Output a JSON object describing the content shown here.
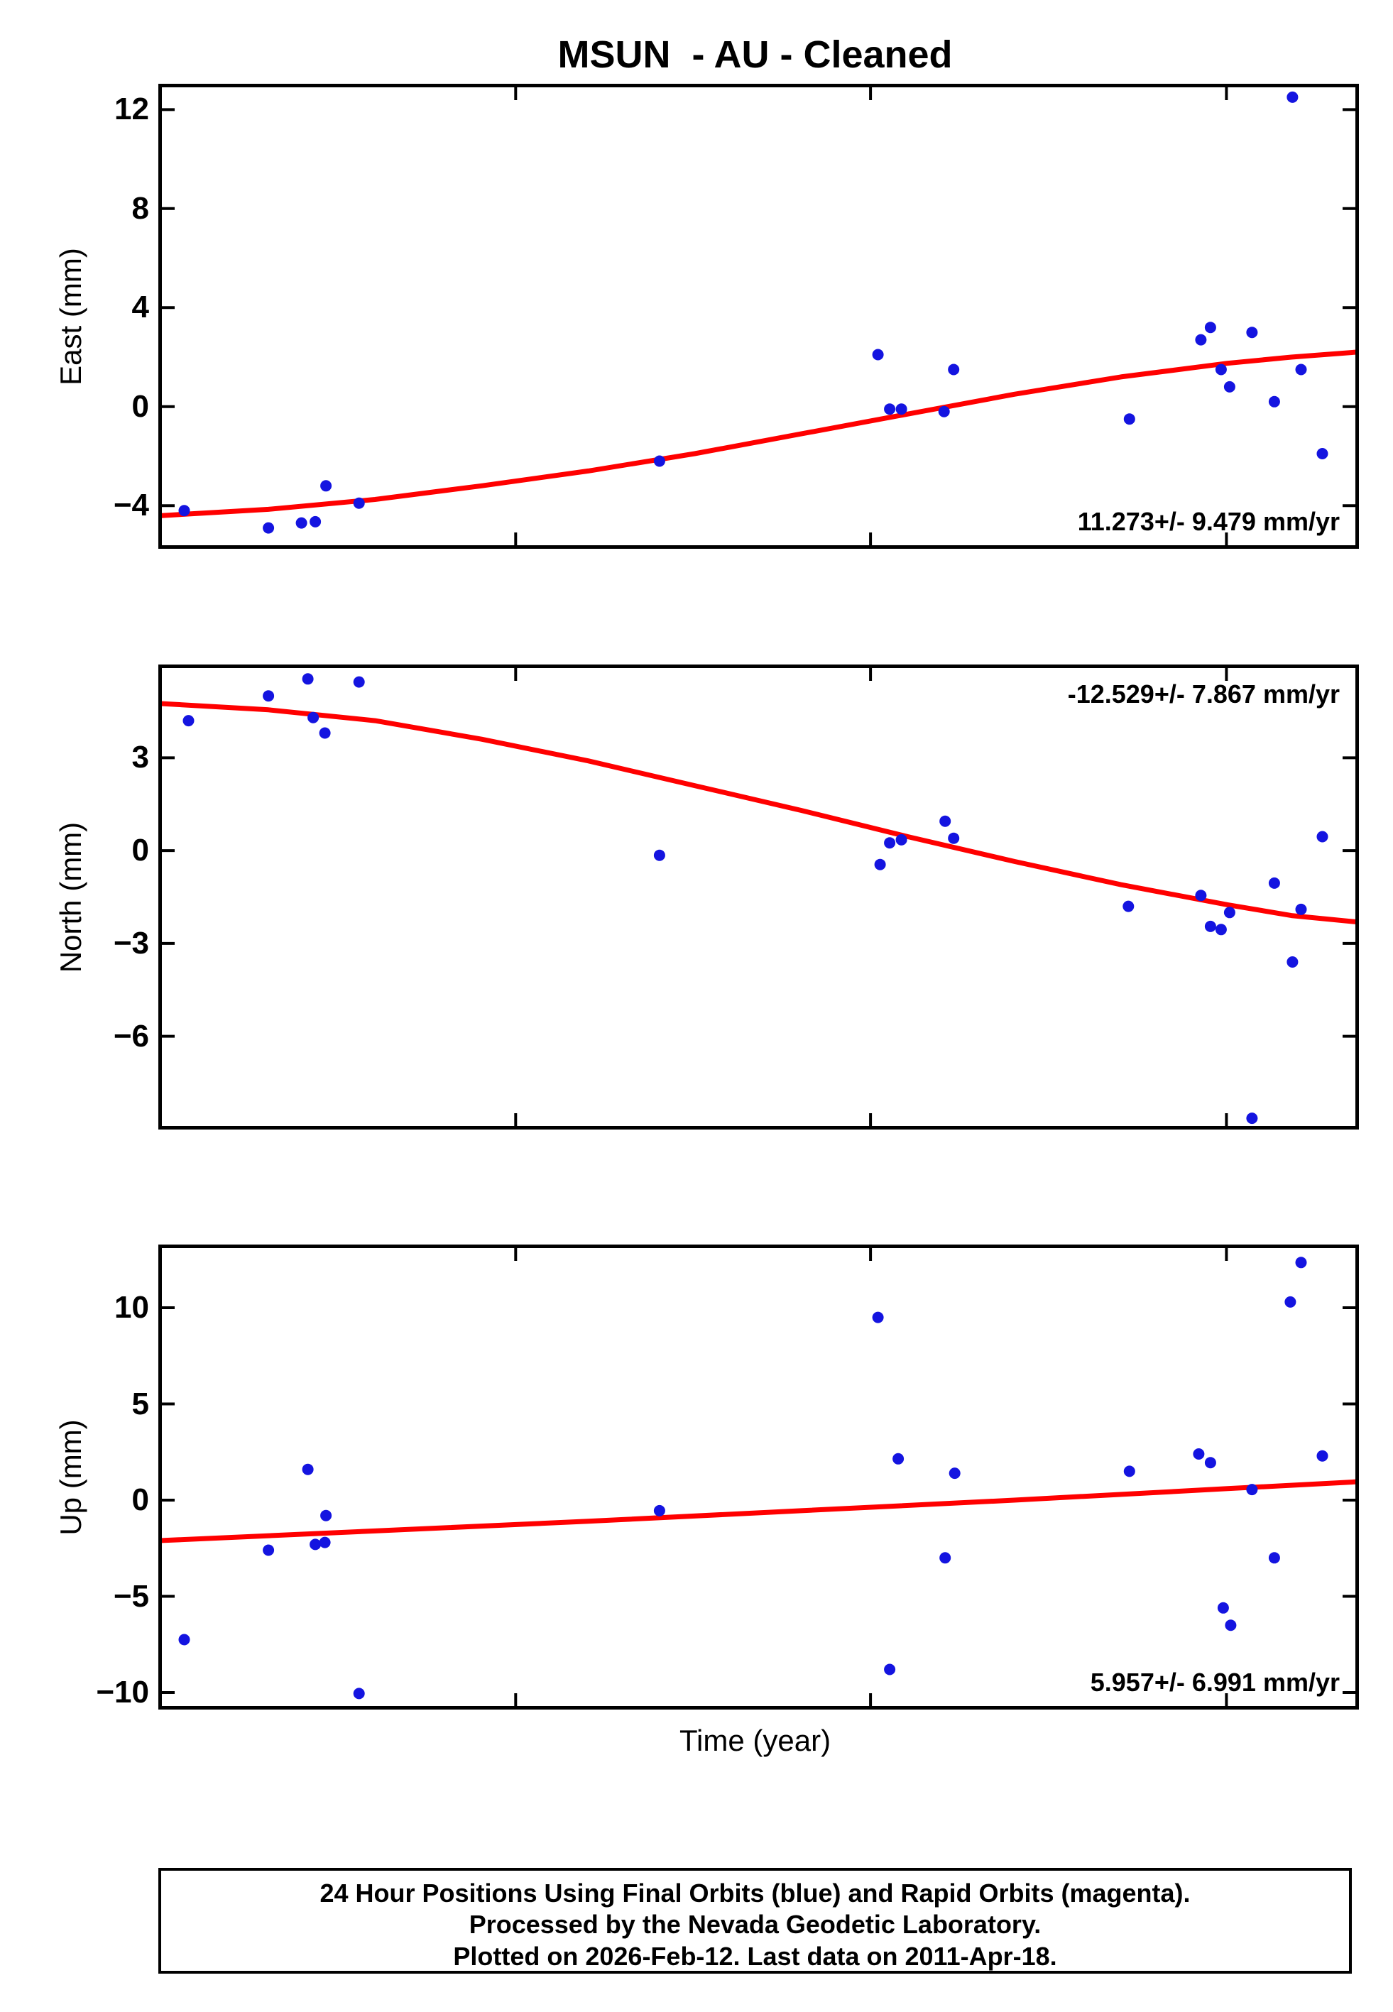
{
  "title": "MSUN  - AU - Cleaned",
  "xlabel": "Time (year)",
  "footer": {
    "lines": [
      "24 Hour Positions Using Final Orbits (blue) and Rapid Orbits (magenta).",
      "Processed by the Nevada Geodetic Laboratory.",
      "Plotted on 2026-Feb-12. Last data on 2011-Apr-18."
    ]
  },
  "colors": {
    "points": "#1414e0",
    "trend": "#ff0000",
    "frame": "#000000"
  },
  "chart_data": [
    {
      "type": "scatter",
      "name": "east",
      "ylabel": "East (mm)",
      "annotation": "11.273+/- 9.479 mm/yr",
      "annotation_position": "bottom-right",
      "xlim": [
        2000.4,
        2011.6
      ],
      "ylim": [
        -5.6,
        12.9
      ],
      "y_ticks": [
        12,
        8,
        4,
        0,
        -4
      ],
      "x_ticks": [
        2003.72,
        2007.05,
        2010.39
      ],
      "points": [
        [
          2000.61,
          -4.2
        ],
        [
          2001.4,
          -4.9
        ],
        [
          2001.71,
          -4.7
        ],
        [
          2001.84,
          -4.65
        ],
        [
          2001.94,
          -3.2
        ],
        [
          2002.25,
          -3.9
        ],
        [
          2005.07,
          -2.2
        ],
        [
          2007.12,
          2.1
        ],
        [
          2007.23,
          -0.1
        ],
        [
          2007.34,
          -0.1
        ],
        [
          2007.74,
          -0.2
        ],
        [
          2007.83,
          1.5
        ],
        [
          2009.48,
          -0.5
        ],
        [
          2010.15,
          2.7
        ],
        [
          2010.24,
          3.2
        ],
        [
          2010.34,
          1.5
        ],
        [
          2010.42,
          0.8
        ],
        [
          2010.63,
          3.0
        ],
        [
          2010.84,
          0.2
        ],
        [
          2011.01,
          12.5
        ],
        [
          2011.09,
          1.5
        ],
        [
          2011.29,
          -1.9
        ]
      ],
      "trend": [
        [
          2000.4,
          -4.4
        ],
        [
          2001.4,
          -4.15
        ],
        [
          2002.4,
          -3.75
        ],
        [
          2003.4,
          -3.2
        ],
        [
          2004.4,
          -2.6
        ],
        [
          2005.4,
          -1.9
        ],
        [
          2006.4,
          -1.1
        ],
        [
          2007.4,
          -0.3
        ],
        [
          2008.4,
          0.5
        ],
        [
          2009.4,
          1.2
        ],
        [
          2010.4,
          1.75
        ],
        [
          2011.0,
          2.0
        ],
        [
          2011.6,
          2.2
        ]
      ]
    },
    {
      "type": "scatter",
      "name": "north",
      "ylabel": "North (mm)",
      "annotation": "-12.529+/- 7.867 mm/yr",
      "annotation_position": "top-right",
      "xlim": [
        2000.4,
        2011.6
      ],
      "ylim": [
        -8.9,
        5.9
      ],
      "y_ticks": [
        3,
        0,
        -3,
        -6
      ],
      "x_ticks": [
        2003.72,
        2007.05,
        2010.39
      ],
      "points": [
        [
          2000.65,
          4.2
        ],
        [
          2001.4,
          5.0
        ],
        [
          2001.77,
          5.55
        ],
        [
          2001.82,
          4.3
        ],
        [
          2001.93,
          3.8
        ],
        [
          2002.25,
          5.45
        ],
        [
          2005.07,
          -0.15
        ],
        [
          2007.14,
          -0.45
        ],
        [
          2007.23,
          0.25
        ],
        [
          2007.34,
          0.35
        ],
        [
          2007.75,
          0.95
        ],
        [
          2007.83,
          0.4
        ],
        [
          2009.47,
          -1.8
        ],
        [
          2010.15,
          -1.45
        ],
        [
          2010.24,
          -2.45
        ],
        [
          2010.34,
          -2.55
        ],
        [
          2010.42,
          -2.0
        ],
        [
          2010.63,
          -8.65
        ],
        [
          2010.84,
          -1.05
        ],
        [
          2011.01,
          -3.6
        ],
        [
          2011.09,
          -1.9
        ],
        [
          2011.29,
          0.45
        ]
      ],
      "trend": [
        [
          2000.4,
          4.75
        ],
        [
          2001.4,
          4.55
        ],
        [
          2002.4,
          4.2
        ],
        [
          2003.4,
          3.6
        ],
        [
          2004.4,
          2.9
        ],
        [
          2005.4,
          2.1
        ],
        [
          2006.4,
          1.3
        ],
        [
          2007.4,
          0.45
        ],
        [
          2008.4,
          -0.35
        ],
        [
          2009.4,
          -1.1
        ],
        [
          2010.4,
          -1.75
        ],
        [
          2011.0,
          -2.1
        ],
        [
          2011.6,
          -2.3
        ]
      ]
    },
    {
      "type": "scatter",
      "name": "up",
      "ylabel": "Up (mm)",
      "annotation": "5.957+/- 6.991 mm/yr",
      "annotation_position": "bottom-right",
      "xlim": [
        2000.4,
        2011.6
      ],
      "ylim": [
        -10.7,
        13.1
      ],
      "y_ticks": [
        10,
        5,
        0,
        -5,
        -10
      ],
      "x_ticks": [
        2003.72,
        2007.05,
        2010.39
      ],
      "points": [
        [
          2000.61,
          -7.25
        ],
        [
          2001.4,
          -2.6
        ],
        [
          2001.77,
          1.6
        ],
        [
          2001.84,
          -2.3
        ],
        [
          2001.93,
          -2.2
        ],
        [
          2001.94,
          -0.8
        ],
        [
          2002.25,
          -10.05
        ],
        [
          2005.07,
          -0.55
        ],
        [
          2007.12,
          9.5
        ],
        [
          2007.23,
          -8.8
        ],
        [
          2007.31,
          2.15
        ],
        [
          2007.75,
          -3.0
        ],
        [
          2007.84,
          1.4
        ],
        [
          2009.48,
          1.5
        ],
        [
          2010.13,
          2.4
        ],
        [
          2010.24,
          1.95
        ],
        [
          2010.36,
          -5.6
        ],
        [
          2010.43,
          -6.5
        ],
        [
          2010.63,
          0.55
        ],
        [
          2010.84,
          -3.0
        ],
        [
          2010.99,
          10.3
        ],
        [
          2011.09,
          12.35
        ],
        [
          2011.29,
          2.3
        ]
      ],
      "trend": [
        [
          2000.4,
          -2.1
        ],
        [
          2002.4,
          -1.6
        ],
        [
          2004.4,
          -1.1
        ],
        [
          2006.4,
          -0.55
        ],
        [
          2008.4,
          0.0
        ],
        [
          2010.4,
          0.6
        ],
        [
          2011.6,
          0.95
        ]
      ]
    }
  ]
}
